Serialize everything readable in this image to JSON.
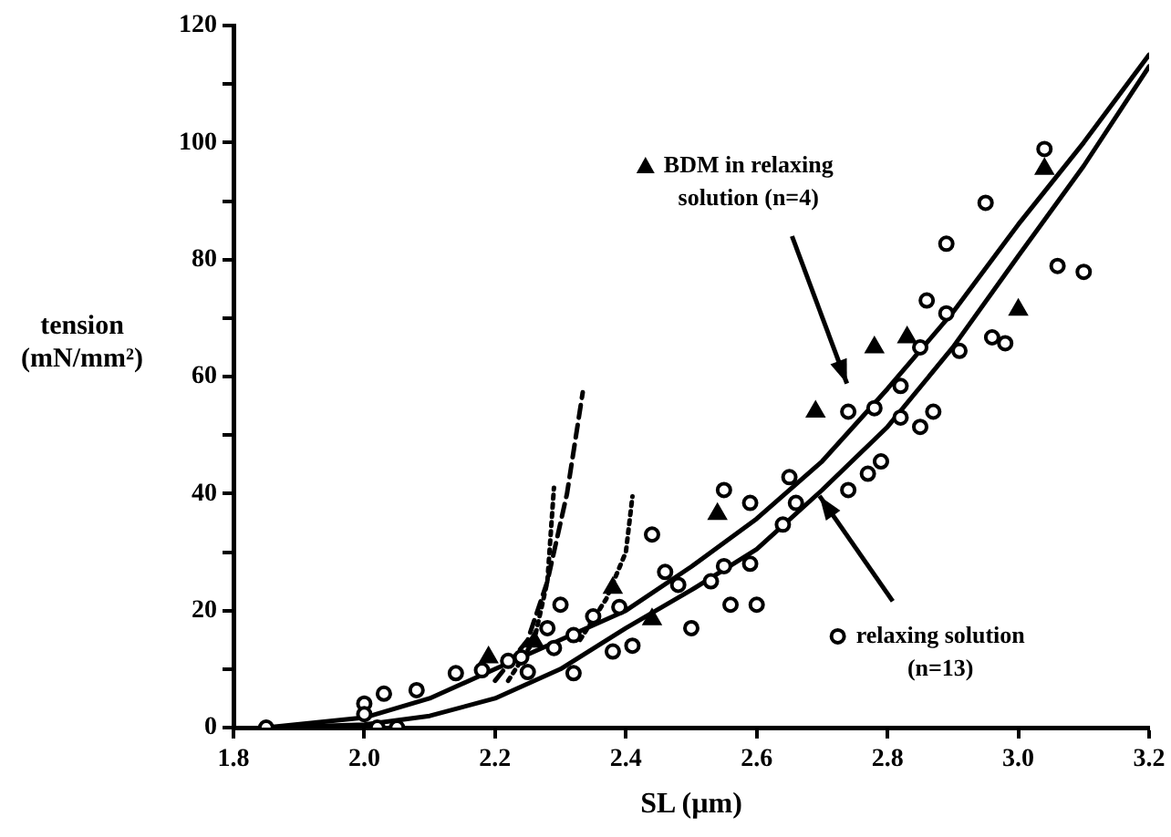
{
  "chart_data": {
    "type": "scatter",
    "xlabel": "SL (µm)",
    "ylabel": "tension (mN/mm²)",
    "xlim": [
      1.8,
      3.2
    ],
    "xticks": [
      1.8,
      {
        "value": 2,
        "label": "2.0"
      },
      2.2,
      2.4,
      2.6,
      2.8,
      {
        "value": 3,
        "label": "3.0"
      },
      3.2
    ],
    "ylim": [
      0,
      120
    ],
    "yticks": [
      0,
      {
        "value": 10,
        "label": null
      },
      20,
      {
        "value": 30,
        "label": null
      },
      40,
      {
        "value": 50,
        "label": null
      },
      60,
      {
        "value": 70,
        "label": null
      },
      80,
      {
        "value": 90,
        "label": null
      },
      100,
      {
        "value": 110,
        "label": null
      },
      120
    ],
    "grid": false,
    "legend": "right",
    "series": [
      {
        "name": "BDM in relaxing solution (n=4)",
        "marker": "triangle",
        "color": "#000000",
        "x": [
          2.19,
          2.26,
          2.38,
          2.44,
          2.54,
          2.69,
          2.78,
          2.83,
          3.0,
          3.04
        ],
        "values": [
          12,
          14.7,
          23.9,
          18.5,
          36.5,
          54,
          65,
          66.7,
          71.4,
          95.5
        ]
      },
      {
        "name": "relaxing solution (n=13)",
        "marker": "circle",
        "color": "#000000",
        "x": [
          1.85,
          2.0,
          2.0,
          2.02,
          2.03,
          2.05,
          2.08,
          2.14,
          2.18,
          2.22,
          2.24,
          2.25,
          2.28,
          2.29,
          2.3,
          2.32,
          2.32,
          2.35,
          2.38,
          2.39,
          2.41,
          2.44,
          2.46,
          2.48,
          2.5,
          2.53,
          2.55,
          2.55,
          2.56,
          2.59,
          2.59,
          2.6,
          2.64,
          2.65,
          2.66,
          2.74,
          2.74,
          2.77,
          2.78,
          2.79,
          2.82,
          2.82,
          2.85,
          2.85,
          2.86,
          2.87,
          2.89,
          2.89,
          2.91,
          2.95,
          2.96,
          2.98,
          3.04,
          3.06,
          3.1
        ],
        "values": [
          0,
          4.1,
          2.3,
          0,
          5.8,
          0,
          6.4,
          9.3,
          9.8,
          11.4,
          12,
          9.5,
          17,
          13.6,
          21,
          9.3,
          15.8,
          19,
          13,
          20.6,
          14,
          33,
          26.6,
          24.4,
          17,
          25,
          40.6,
          27.6,
          21,
          28,
          38.4,
          21,
          34.7,
          42.8,
          38.4,
          40.6,
          54,
          43.4,
          54.6,
          45.5,
          58.4,
          53,
          51.4,
          65,
          73,
          54,
          70.8,
          82.7,
          64.4,
          89.7,
          66.7,
          65.7,
          98.9,
          78.9,
          77.9
        ]
      },
      {
        "type": "line",
        "marker": "none",
        "line_style": "solid",
        "color": "#000000",
        "x": [
          1.85,
          2.0,
          2.1,
          2.2,
          2.3,
          2.4,
          2.5,
          2.6,
          2.7,
          2.8,
          2.9,
          3.0,
          3.1,
          3.2
        ],
        "values": [
          0,
          1.7,
          5,
          10,
          15,
          20,
          27.5,
          35.7,
          45.5,
          57.9,
          71,
          86,
          100,
          115
        ]
      },
      {
        "type": "line",
        "marker": "none",
        "line_style": "solid",
        "color": "#000000",
        "x": [
          1.85,
          2.0,
          2.1,
          2.2,
          2.3,
          2.4,
          2.5,
          2.6,
          2.7,
          2.8,
          2.9,
          3.0,
          3.1,
          3.2
        ],
        "values": [
          0,
          0.5,
          2,
          5,
          10,
          17,
          23.5,
          30.5,
          40.6,
          51.4,
          65,
          80.6,
          96,
          113
        ]
      },
      {
        "type": "line",
        "marker": "none",
        "line_style": "dashed",
        "color": "#000000",
        "x": [
          2.2,
          2.25,
          2.28,
          2.31,
          2.334
        ],
        "values": [
          8,
          15,
          25,
          40,
          57.3
        ]
      },
      {
        "type": "line",
        "marker": "none",
        "line_style": "dotted",
        "color": "#000000",
        "x": [
          2.22,
          2.26,
          2.28,
          2.29
        ],
        "values": [
          8,
          15,
          25,
          41
        ]
      },
      {
        "type": "line",
        "marker": "none",
        "line_style": "dotted",
        "color": "#000000",
        "x": [
          2.33,
          2.37,
          2.4,
          2.41
        ],
        "values": [
          15,
          22,
          30,
          39.5
        ]
      }
    ]
  }
}
